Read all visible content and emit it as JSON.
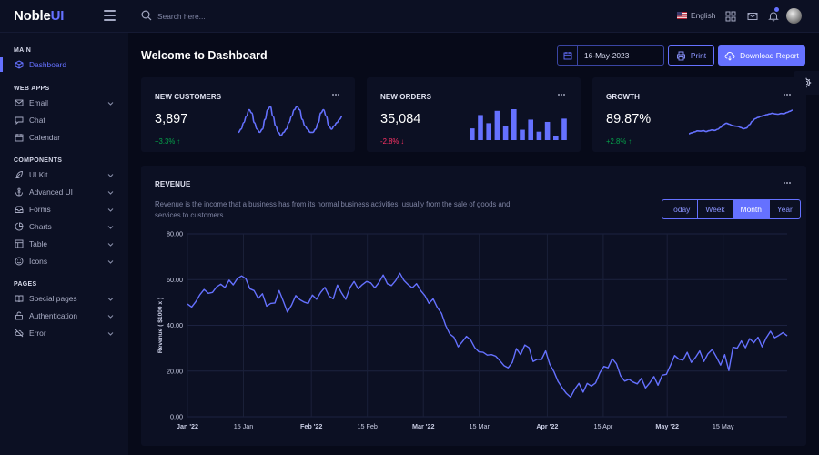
{
  "brand": {
    "name": "Noble",
    "accent": "UI"
  },
  "search": {
    "placeholder": "Search here..."
  },
  "topbar": {
    "language": "English"
  },
  "sidebar": {
    "sections": [
      "MAIN",
      "WEB APPS",
      "COMPONENTS",
      "PAGES"
    ],
    "items": [
      {
        "label": "Dashboard",
        "icon": "cube-icon",
        "active": true
      },
      {
        "label": "Email",
        "icon": "mail-icon",
        "chevron": true
      },
      {
        "label": "Chat",
        "icon": "message-icon"
      },
      {
        "label": "Calendar",
        "icon": "calendar-icon"
      },
      {
        "label": "UI Kit",
        "icon": "feather-icon",
        "chevron": true
      },
      {
        "label": "Advanced UI",
        "icon": "anchor-icon",
        "chevron": true
      },
      {
        "label": "Forms",
        "icon": "inbox-icon",
        "chevron": true
      },
      {
        "label": "Charts",
        "icon": "pie-chart-icon",
        "chevron": true
      },
      {
        "label": "Table",
        "icon": "layout-icon",
        "chevron": true
      },
      {
        "label": "Icons",
        "icon": "smile-icon",
        "chevron": true
      },
      {
        "label": "Special pages",
        "icon": "book-icon",
        "chevron": true
      },
      {
        "label": "Authentication",
        "icon": "unlock-icon",
        "chevron": true
      },
      {
        "label": "Error",
        "icon": "cloud-off-icon",
        "chevron": true
      }
    ]
  },
  "page": {
    "title": "Welcome to Dashboard",
    "date": "16-May-2023",
    "print_label": "Print",
    "download_label": "Download Report"
  },
  "cards": [
    {
      "title": "NEW CUSTOMERS",
      "value": "3,897",
      "change": "+3.3%",
      "direction": "up"
    },
    {
      "title": "NEW ORDERS",
      "value": "35,084",
      "change": "-2.8%",
      "direction": "down"
    },
    {
      "title": "GROWTH",
      "value": "89.87%",
      "change": "+2.8%",
      "direction": "up"
    }
  ],
  "colors": {
    "accent": "#6571ff",
    "up": "#05a34a",
    "down": "#ff3366",
    "card": "#0c1023",
    "bg": "#070a19"
  },
  "revenue": {
    "title": "REVENUE",
    "description": "Revenue is the income that a business has from its normal business activities, usually from the sale of goods and services to customers.",
    "periods": [
      "Today",
      "Week",
      "Month",
      "Year"
    ],
    "active_period": "Month"
  },
  "chart_data": [
    {
      "type": "line",
      "title": "REVENUE",
      "ylabel": "Revenue ( $1000 x )",
      "ylim": [
        0,
        80
      ],
      "yticks": [
        "0.00",
        "20.00",
        "40.00",
        "60.00",
        "80.00"
      ],
      "xticks": [
        "Jan '22",
        "15 Jan",
        "Feb '22",
        "15 Feb",
        "Mar '22",
        "15 Mar",
        "Apr '22",
        "15 Apr",
        "May '22",
        "15 May"
      ],
      "x_start": "2022-01-01",
      "x_end": "2022-05-31",
      "grid": true,
      "series": [
        {
          "values": [
            49.3,
            48.0,
            50.4,
            53.4,
            55.7,
            54.0,
            54.4,
            56.8,
            58.0,
            56.5,
            59.8,
            57.7,
            60.5,
            61.6,
            60.4,
            56.0,
            55.2,
            51.8,
            53.8,
            48.4,
            49.6,
            49.8,
            55.2,
            50.6,
            45.8,
            48.8,
            53.0,
            51.2,
            50.2,
            49.6,
            53.2,
            51.4,
            54.4,
            56.6,
            52.8,
            51.6,
            57.6,
            54.2,
            51.4,
            56.4,
            59.2,
            56.0,
            57.8,
            59.2,
            58.6,
            56.4,
            58.8,
            62.0,
            58.2,
            57.4,
            59.6,
            62.8,
            59.6,
            57.8,
            56.4,
            58.2,
            55.2,
            53.0,
            49.6,
            51.6,
            47.8,
            45.2,
            40.0,
            36.2,
            34.8,
            30.6,
            32.8,
            35.2,
            33.6,
            30.2,
            28.4,
            28.2,
            27.0,
            27.2,
            26.5,
            24.6,
            22.4,
            21.4,
            23.8,
            29.8,
            27.2,
            31.4,
            30.2,
            24.2,
            25.2,
            25.0,
            28.8,
            23.0,
            19.8,
            15.4,
            12.6,
            10.2,
            8.6,
            12.0,
            14.6,
            10.8,
            14.6,
            13.4,
            14.8,
            19.2,
            22.0,
            21.4,
            25.4,
            23.2,
            18.0,
            15.6,
            16.4,
            15.2,
            14.4,
            16.8,
            12.6,
            14.8,
            17.6,
            13.8,
            18.2,
            18.6,
            22.6,
            26.8,
            25.2,
            24.8,
            28.2,
            23.8,
            26.0,
            28.8,
            24.2,
            27.6,
            29.4,
            26.2,
            22.6,
            27.2,
            20.2,
            30.4,
            30.0,
            33.2,
            30.2,
            34.2,
            32.4,
            34.8,
            30.6,
            34.6,
            37.4,
            34.6,
            35.6,
            36.8,
            35.4
          ]
        }
      ]
    },
    {
      "type": "line",
      "title": "NEW CUSTOMERS",
      "series": [
        {
          "values": [
            2,
            3,
            5,
            7,
            9,
            8,
            5,
            3,
            2,
            3,
            6,
            9,
            10,
            7,
            4,
            2,
            1,
            2,
            3,
            5,
            7,
            9,
            10,
            9,
            6,
            4,
            3,
            2,
            2,
            3,
            5,
            8,
            9,
            7,
            4,
            3,
            4,
            5,
            6,
            7
          ]
        }
      ]
    },
    {
      "type": "bar",
      "title": "NEW ORDERS",
      "values": [
        36,
        77,
        52,
        90,
        44,
        95,
        32,
        63,
        26,
        56,
        14,
        66
      ]
    },
    {
      "type": "line",
      "title": "GROWTH",
      "series": [
        {
          "values": [
            3,
            3.4,
            3.8,
            4.2,
            4.1,
            4.3,
            3.9,
            4.3,
            4.6,
            4.4,
            4.9,
            5.7,
            6.8,
            7.4,
            7.0,
            6.5,
            6.2,
            6.1,
            5.6,
            5.1,
            5.4,
            6.8,
            8.2,
            9.3,
            9.8,
            10.3,
            10.6,
            11.0,
            11.3,
            11.6,
            11.3,
            11.2,
            11.5,
            11.4,
            11.9,
            12.4,
            12.9
          ]
        }
      ]
    }
  ]
}
